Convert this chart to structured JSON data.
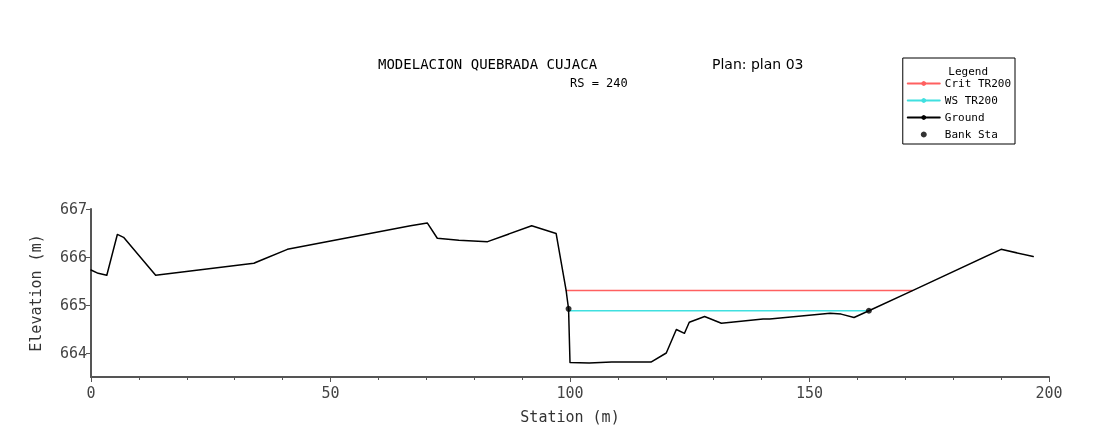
{
  "chart_data": {
    "type": "line",
    "title": "MODELACION QUEBRADA CUJACA",
    "subtitle": "RS = 240",
    "annotations": [
      "Plan: plan 03"
    ],
    "xlabel": "Station (m)",
    "ylabel": "Elevation (m)",
    "legend_title": "Legend",
    "xlim": [
      0,
      200
    ],
    "xticks": [
      0,
      50,
      100,
      150,
      200
    ],
    "ylim": [
      663.5,
      667
    ],
    "yticks": [
      664,
      665,
      666,
      667
    ],
    "grid": false,
    "legend": "top right",
    "line_style": "solid",
    "series": [
      {
        "name": "Crit TR200",
        "color": "#ff6060",
        "x": [
          99.2,
          171.5
        ],
        "values": [
          665.3,
          665.3
        ]
      },
      {
        "name": "WS TR200",
        "color": "#40e0e0",
        "x": [
          99.7,
          162.4
        ],
        "values": [
          664.88,
          664.88
        ]
      },
      {
        "name": "Ground",
        "color": "#000000",
        "x": [
          0,
          1.5,
          3.3,
          5.5,
          6.8,
          13.5,
          34,
          41,
          66.7,
          70.2,
          72.3,
          76.8,
          82.8,
          92,
          97.1,
          99.2,
          99.4,
          99.7,
          100,
          104,
          108.7,
          116.9,
          120.1,
          122.2,
          123.9,
          124.9,
          127,
          128.1,
          131.6,
          140.3,
          141.7,
          154.3,
          156.6,
          159.3,
          162.4,
          171.5,
          190,
          196.7
        ],
        "values": [
          665.73,
          665.66,
          665.62,
          666.47,
          666.41,
          665.62,
          665.87,
          666.16,
          666.65,
          666.71,
          666.39,
          666.35,
          666.32,
          666.65,
          666.49,
          665.3,
          665.14,
          664.92,
          663.8,
          663.79,
          663.81,
          663.81,
          664.0,
          664.49,
          664.41,
          664.64,
          664.72,
          664.76,
          664.62,
          664.71,
          664.71,
          664.83,
          664.81,
          664.74,
          664.88,
          665.3,
          666.16,
          666.01
        ]
      },
      {
        "name": "Bank Sta",
        "type": "scatter",
        "color": "#000000",
        "x": [
          99.7,
          162.4
        ],
        "values": [
          664.92,
          664.88
        ]
      }
    ]
  }
}
